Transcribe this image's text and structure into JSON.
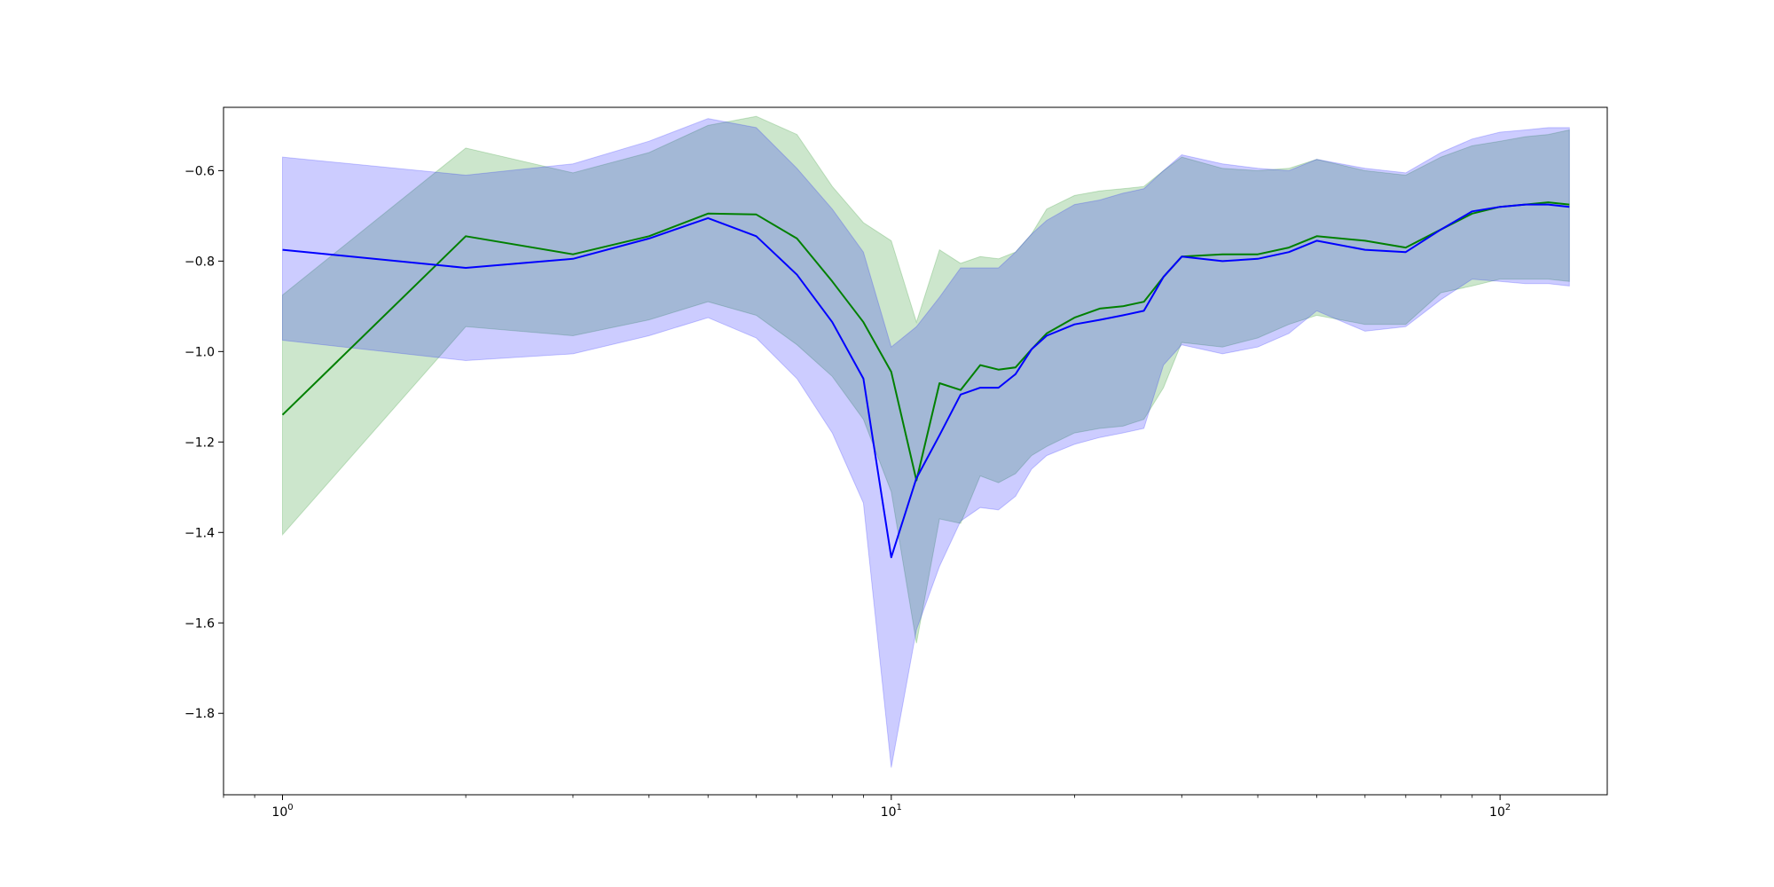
{
  "chart_data": {
    "type": "line",
    "xscale": "log",
    "xlim": [
      0.8,
      150
    ],
    "ylim": [
      -1.98,
      -0.46
    ],
    "grid": false,
    "legend": "none",
    "x_ticks": [
      {
        "value": 1,
        "base": "10",
        "exp": "0"
      },
      {
        "value": 10,
        "base": "10",
        "exp": "1"
      },
      {
        "value": 100,
        "base": "10",
        "exp": "2"
      }
    ],
    "y_ticks": [
      {
        "value": -0.6,
        "label": "−0.6"
      },
      {
        "value": -0.8,
        "label": "−0.8"
      },
      {
        "value": -1.0,
        "label": "−1.0"
      },
      {
        "value": -1.2,
        "label": "−1.2"
      },
      {
        "value": -1.4,
        "label": "−1.4"
      },
      {
        "value": -1.6,
        "label": "−1.6"
      },
      {
        "value": -1.8,
        "label": "−1.8"
      }
    ],
    "series": [
      {
        "color": "#008000",
        "band_color": "#008000",
        "band_opacity": 0.2,
        "x": [
          1,
          2,
          3,
          4,
          5,
          6,
          7,
          8,
          9,
          10,
          11,
          12,
          13,
          14,
          15,
          16,
          17,
          18,
          20,
          22,
          24,
          26,
          28,
          30,
          35,
          40,
          45,
          50,
          60,
          70,
          80,
          90,
          100,
          110,
          120,
          130
        ],
        "y": [
          -1.14,
          -0.745,
          -0.785,
          -0.745,
          -0.695,
          -0.697,
          -0.75,
          -0.845,
          -0.935,
          -1.045,
          -1.285,
          -1.07,
          -1.085,
          -1.03,
          -1.04,
          -1.035,
          -0.995,
          -0.96,
          -0.925,
          -0.905,
          -0.9,
          -0.89,
          -0.835,
          -0.79,
          -0.785,
          -0.785,
          -0.77,
          -0.745,
          -0.755,
          -0.77,
          -0.73,
          -0.695,
          -0.68,
          -0.675,
          -0.67,
          -0.675
        ],
        "lower": [
          -1.405,
          -0.945,
          -0.965,
          -0.93,
          -0.89,
          -0.92,
          -0.985,
          -1.055,
          -1.15,
          -1.31,
          -1.645,
          -1.37,
          -1.38,
          -1.275,
          -1.29,
          -1.27,
          -1.23,
          -1.21,
          -1.18,
          -1.17,
          -1.165,
          -1.15,
          -1.08,
          -0.98,
          -0.99,
          -0.97,
          -0.94,
          -0.92,
          -0.94,
          -0.94,
          -0.87,
          -0.855,
          -0.84,
          -0.84,
          -0.84,
          -0.845
        ],
        "upper": [
          -0.875,
          -0.55,
          -0.605,
          -0.56,
          -0.5,
          -0.48,
          -0.52,
          -0.635,
          -0.715,
          -0.755,
          -0.935,
          -0.775,
          -0.805,
          -0.79,
          -0.795,
          -0.78,
          -0.74,
          -0.685,
          -0.655,
          -0.645,
          -0.64,
          -0.635,
          -0.6,
          -0.57,
          -0.595,
          -0.6,
          -0.595,
          -0.575,
          -0.6,
          -0.61,
          -0.57,
          -0.545,
          -0.535,
          -0.525,
          -0.52,
          -0.51
        ]
      },
      {
        "color": "#0000ff",
        "band_color": "#0000ff",
        "band_opacity": 0.2,
        "x": [
          1,
          2,
          3,
          4,
          5,
          6,
          7,
          8,
          9,
          10,
          11,
          12,
          13,
          14,
          15,
          16,
          17,
          18,
          20,
          22,
          24,
          26,
          28,
          30,
          35,
          40,
          45,
          50,
          60,
          70,
          80,
          90,
          100,
          110,
          120,
          130
        ],
        "y": [
          -0.775,
          -0.815,
          -0.795,
          -0.75,
          -0.705,
          -0.745,
          -0.83,
          -0.935,
          -1.06,
          -1.455,
          -1.28,
          -1.185,
          -1.095,
          -1.08,
          -1.08,
          -1.05,
          -0.995,
          -0.965,
          -0.94,
          -0.93,
          -0.92,
          -0.91,
          -0.835,
          -0.79,
          -0.8,
          -0.795,
          -0.78,
          -0.755,
          -0.775,
          -0.78,
          -0.73,
          -0.69,
          -0.68,
          -0.675,
          -0.675,
          -0.68
        ],
        "lower": [
          -0.975,
          -1.02,
          -1.005,
          -0.965,
          -0.925,
          -0.97,
          -1.06,
          -1.18,
          -1.335,
          -1.92,
          -1.615,
          -1.475,
          -1.375,
          -1.345,
          -1.35,
          -1.32,
          -1.26,
          -1.23,
          -1.205,
          -1.19,
          -1.18,
          -1.17,
          -1.03,
          -0.985,
          -1.005,
          -0.99,
          -0.96,
          -0.91,
          -0.955,
          -0.945,
          -0.885,
          -0.84,
          -0.845,
          -0.85,
          -0.85,
          -0.855
        ],
        "upper": [
          -0.57,
          -0.61,
          -0.585,
          -0.535,
          -0.485,
          -0.505,
          -0.595,
          -0.685,
          -0.78,
          -0.99,
          -0.945,
          -0.88,
          -0.815,
          -0.815,
          -0.815,
          -0.78,
          -0.74,
          -0.71,
          -0.675,
          -0.665,
          -0.65,
          -0.64,
          -0.6,
          -0.565,
          -0.585,
          -0.595,
          -0.6,
          -0.575,
          -0.595,
          -0.605,
          -0.56,
          -0.53,
          -0.515,
          -0.51,
          -0.505,
          -0.505
        ]
      }
    ]
  }
}
